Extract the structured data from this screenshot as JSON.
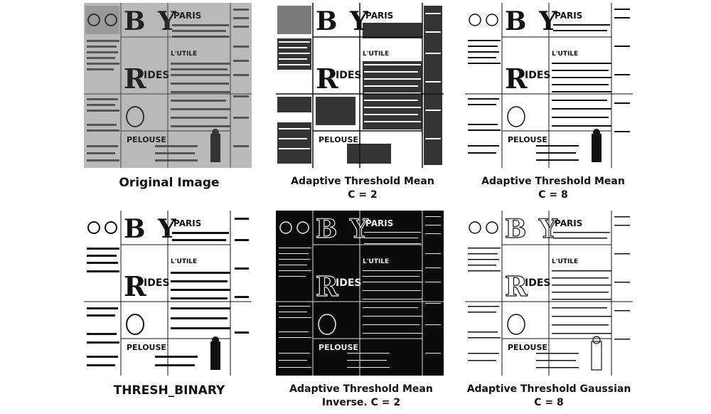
{
  "panels": [
    {
      "id": "original",
      "caption_line1": "Original Image",
      "caption_line2": "",
      "tone": "gray"
    },
    {
      "id": "atm-c2",
      "caption_line1": "Adaptive Threshold Mean",
      "caption_line2": "C = 2",
      "tone": "busy"
    },
    {
      "id": "atm-c8",
      "caption_line1": "Adaptive Threshold Mean",
      "caption_line2": "C = 8",
      "tone": "clean"
    },
    {
      "id": "thresh-binary",
      "caption_line1": "THRESH_BINARY",
      "caption_line2": "",
      "tone": "binary"
    },
    {
      "id": "atm-inv-c2",
      "caption_line1": "Adaptive Threshold Mean",
      "caption_line2": "Inverse. C = 2",
      "tone": "inverse"
    },
    {
      "id": "atg-c8",
      "caption_line1": "Adaptive Threshold Gaussian",
      "caption_line2": "C = 8",
      "tone": "clean"
    }
  ],
  "newspaper_words": [
    "PARIS",
    "RIDES",
    "PELOUSE",
    "L'UTILE",
    "PARIS"
  ],
  "colors": {
    "gray_bg": "#b9b9b9",
    "ink": "#111111",
    "paper": "#ffffff"
  }
}
